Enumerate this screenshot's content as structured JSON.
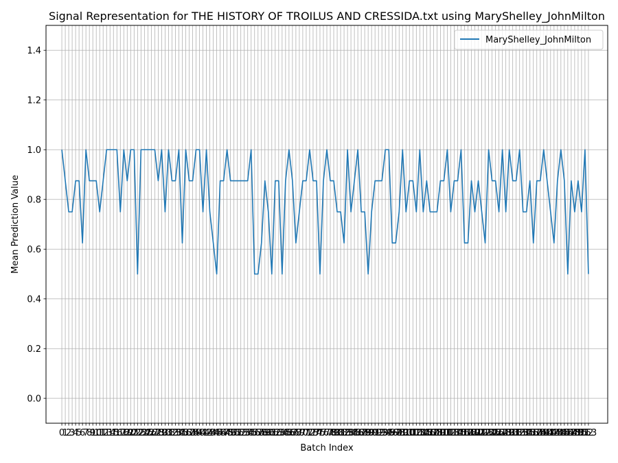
{
  "chart_data": {
    "type": "line",
    "title": "Signal Representation for THE HISTORY OF TROILUS AND CRESSIDA.txt using MaryShelley_JohnMilton",
    "xlabel": "Batch Index",
    "ylabel": "Mean Prediction Value",
    "xlim": [
      -4.6,
      158.6
    ],
    "ylim": [
      -0.1,
      1.5
    ],
    "yticks": [
      "0.0",
      "0.2",
      "0.4",
      "0.6",
      "0.8",
      "1.0",
      "1.2",
      "1.4"
    ],
    "grid": true,
    "legend_position": "top-right",
    "series": [
      {
        "name": "MaryShelley_JohnMilton",
        "color": "#1f77b4",
        "values": [
          1.0,
          0.875,
          0.75,
          0.75,
          0.875,
          0.875,
          0.625,
          1.0,
          0.875,
          0.875,
          0.875,
          0.75,
          0.875,
          1.0,
          1.0,
          1.0,
          1.0,
          0.75,
          1.0,
          0.875,
          1.0,
          1.0,
          0.5,
          1.0,
          1.0,
          1.0,
          1.0,
          1.0,
          0.875,
          1.0,
          0.75,
          1.0,
          0.875,
          0.875,
          1.0,
          0.625,
          1.0,
          0.875,
          0.875,
          1.0,
          1.0,
          0.75,
          1.0,
          0.75,
          0.625,
          0.5,
          0.875,
          0.875,
          1.0,
          0.875,
          0.875,
          0.875,
          0.875,
          0.875,
          0.875,
          1.0,
          0.5,
          0.5,
          0.625,
          0.875,
          0.75,
          0.5,
          0.875,
          0.875,
          0.5,
          0.875,
          1.0,
          0.875,
          0.625,
          0.75,
          0.875,
          0.875,
          1.0,
          0.875,
          0.875,
          0.5,
          0.875,
          1.0,
          0.875,
          0.875,
          0.75,
          0.75,
          0.625,
          1.0,
          0.75,
          0.875,
          1.0,
          0.75,
          0.75,
          0.5,
          0.75,
          0.875,
          0.875,
          0.875,
          1.0,
          1.0,
          0.625,
          0.625,
          0.75,
          1.0,
          0.75,
          0.875,
          0.875,
          0.75,
          1.0,
          0.75,
          0.875,
          0.75,
          0.75,
          0.75,
          0.875,
          0.875,
          1.0,
          0.75,
          0.875,
          0.875,
          1.0,
          0.625,
          0.625,
          0.875,
          0.75,
          0.875,
          0.75,
          0.625,
          1.0,
          0.875,
          0.875,
          0.75,
          1.0,
          0.75,
          1.0,
          0.875,
          0.875,
          1.0,
          0.75,
          0.75,
          0.875,
          0.625,
          0.875,
          0.875,
          1.0,
          0.875,
          0.75,
          0.625,
          0.875,
          1.0,
          0.875,
          0.5,
          0.875,
          0.75,
          0.875,
          0.75,
          1.0,
          0.5
        ]
      }
    ]
  }
}
